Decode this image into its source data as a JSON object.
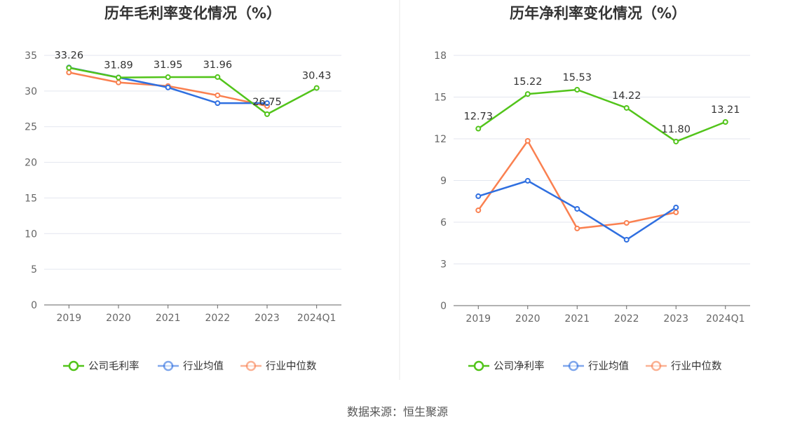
{
  "source": "数据来源：恒生聚源",
  "colors": {
    "company": "#52c41a",
    "avg": "#2f6fe0",
    "median": "#fa8050",
    "grid": "#e3e6ef",
    "axis": "#666666"
  },
  "chart_data": [
    {
      "type": "line",
      "title": "历年毛利率变化情况（%）",
      "categories": [
        "2019",
        "2020",
        "2021",
        "2022",
        "2023",
        "2024Q1"
      ],
      "ylim": [
        0,
        35
      ],
      "yticks": [
        0,
        5,
        10,
        15,
        20,
        25,
        30,
        35
      ],
      "grid": true,
      "legend_placement": "bottom",
      "series": [
        {
          "name": "公司毛利率",
          "key": "company",
          "values": [
            33.26,
            31.89,
            31.95,
            31.96,
            26.75,
            30.43
          ],
          "labels": [
            "33.26",
            "31.89",
            "31.95",
            "31.96",
            "26.75",
            "30.43"
          ]
        },
        {
          "name": "行业均值",
          "key": "avg",
          "values": [
            33.3,
            31.9,
            30.5,
            28.3,
            28.3,
            null
          ]
        },
        {
          "name": "行业中位数",
          "key": "median",
          "values": [
            32.6,
            31.2,
            30.7,
            29.4,
            27.9,
            null
          ]
        }
      ]
    },
    {
      "type": "line",
      "title": "历年净利率变化情况（%）",
      "categories": [
        "2019",
        "2020",
        "2021",
        "2022",
        "2023",
        "2024Q1"
      ],
      "ylim": [
        0,
        18
      ],
      "yticks": [
        0,
        3,
        6,
        9,
        12,
        15,
        18
      ],
      "grid": true,
      "legend_placement": "bottom",
      "series": [
        {
          "name": "公司净利率",
          "key": "company",
          "values": [
            12.73,
            15.22,
            15.53,
            14.22,
            11.8,
            13.21
          ],
          "labels": [
            "12.73",
            "15.22",
            "15.53",
            "14.22",
            "11.80",
            "13.21"
          ]
        },
        {
          "name": "行业均值",
          "key": "avg",
          "values": [
            7.87,
            8.98,
            6.96,
            4.74,
            7.06,
            null
          ]
        },
        {
          "name": "行业中位数",
          "key": "median",
          "values": [
            6.86,
            11.85,
            5.55,
            5.95,
            6.71,
            null
          ]
        }
      ]
    }
  ]
}
